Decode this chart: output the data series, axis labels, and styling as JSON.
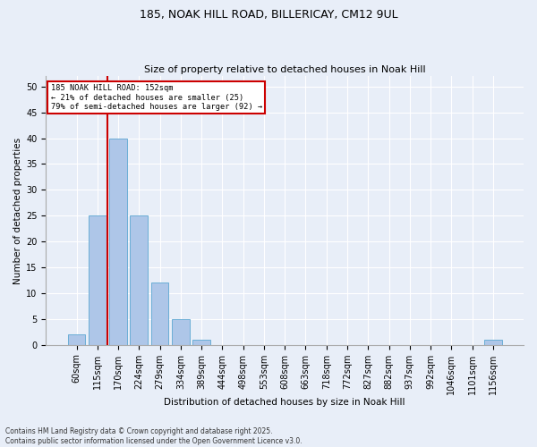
{
  "title1": "185, NOAK HILL ROAD, BILLERICAY, CM12 9UL",
  "title2": "Size of property relative to detached houses in Noak Hill",
  "xlabel": "Distribution of detached houses by size in Noak Hill",
  "ylabel": "Number of detached properties",
  "categories": [
    "60sqm",
    "115sqm",
    "170sqm",
    "224sqm",
    "279sqm",
    "334sqm",
    "389sqm",
    "444sqm",
    "498sqm",
    "553sqm",
    "608sqm",
    "663sqm",
    "718sqm",
    "772sqm",
    "827sqm",
    "882sqm",
    "937sqm",
    "992sqm",
    "1046sqm",
    "1101sqm",
    "1156sqm"
  ],
  "values": [
    2,
    25,
    40,
    25,
    12,
    5,
    1,
    0,
    0,
    0,
    0,
    0,
    0,
    0,
    0,
    0,
    0,
    0,
    0,
    0,
    1
  ],
  "bar_color": "#aec6e8",
  "bar_edge_color": "#6baed6",
  "vline_color": "#cc0000",
  "annotation_text": "185 NOAK HILL ROAD: 152sqm\n← 21% of detached houses are smaller (25)\n79% of semi-detached houses are larger (92) →",
  "annotation_box_color": "#ffffff",
  "annotation_box_edge": "#cc0000",
  "footer1": "Contains HM Land Registry data © Crown copyright and database right 2025.",
  "footer2": "Contains public sector information licensed under the Open Government Licence v3.0.",
  "bg_color": "#e8eef8",
  "plot_bg_color": "#e8eef8",
  "ylim": [
    0,
    52
  ],
  "yticks": [
    0,
    5,
    10,
    15,
    20,
    25,
    30,
    35,
    40,
    45,
    50
  ],
  "title_fontsize": 9,
  "subtitle_fontsize": 8,
  "xlabel_fontsize": 7.5,
  "ylabel_fontsize": 7.5,
  "tick_fontsize": 7,
  "footer_fontsize": 5.5
}
